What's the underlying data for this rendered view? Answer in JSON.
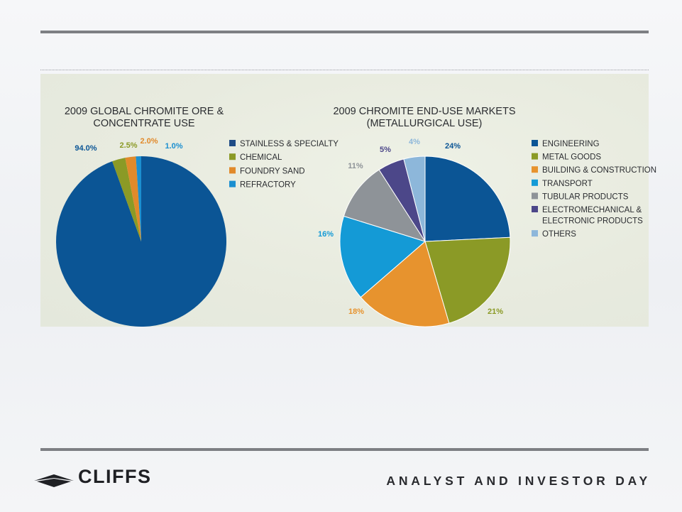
{
  "colors": {
    "rule": "#7d7f83",
    "text": "#2b2d31"
  },
  "footer": {
    "brand": "CLIFFS",
    "tagline": "ANALYST AND INVESTOR DAY",
    "logo_icon": "cliffs-logo-icon"
  },
  "chart_data": [
    {
      "type": "pie",
      "title_lines": [
        "2009 GLOBAL CHROMITE ORE &",
        "CONCENTRATE USE"
      ],
      "categories": [
        "STAINLESS & SPECIALTY",
        "CHEMICAL",
        "FOUNDRY SAND",
        "REFRACTORY"
      ],
      "values": [
        94.0,
        2.5,
        2.0,
        1.0
      ],
      "labels": [
        "94.0%",
        "2.5%",
        "2.0%",
        "1.0%"
      ],
      "colors": [
        "#0b5595",
        "#8b9a26",
        "#e18a2b",
        "#1b8fd0"
      ],
      "legend_colors": [
        "#1f4c86",
        "#8b9a26",
        "#e18a2b",
        "#1b8fd0"
      ],
      "legend_lines": [
        [
          "STAINLESS & SPECIALTY"
        ],
        [
          "CHEMICAL"
        ],
        [
          "FOUNDRY SAND"
        ],
        [
          "REFRACTORY"
        ]
      ],
      "legend": "right"
    },
    {
      "type": "pie",
      "title_lines": [
        "2009 CHROMITE END-USE MARKETS",
        "(METALLURGICAL USE)"
      ],
      "categories": [
        "ENGINEERING",
        "METAL GOODS",
        "BUILDING & CONSTRUCTION",
        "TRANSPORT",
        "TUBULAR PRODUCTS",
        "ELECTROMECHANICAL & ELECTRONIC PRODUCTS",
        "OTHERS"
      ],
      "values": [
        24,
        21,
        18,
        16,
        11,
        5,
        4
      ],
      "labels": [
        "24%",
        "21%",
        "18%",
        "16%",
        "11%",
        "5%",
        "4%"
      ],
      "colors": [
        "#0b5595",
        "#8b9a26",
        "#e7932e",
        "#149ad6",
        "#8e9398",
        "#4c4789",
        "#8db7da"
      ],
      "legend_colors": [
        "#0b5595",
        "#8b9a26",
        "#e7932e",
        "#149ad6",
        "#8e9398",
        "#4c4789",
        "#8db7da"
      ],
      "legend_lines": [
        [
          "ENGINEERING"
        ],
        [
          "METAL GOODS"
        ],
        [
          "BUILDING & CONSTRUCTION"
        ],
        [
          "TRANSPORT"
        ],
        [
          "TUBULAR PRODUCTS"
        ],
        [
          "ELECTROMECHANICAL &",
          "ELECTRONIC PRODUCTS"
        ],
        [
          "OTHERS"
        ]
      ],
      "legend": "right"
    }
  ]
}
